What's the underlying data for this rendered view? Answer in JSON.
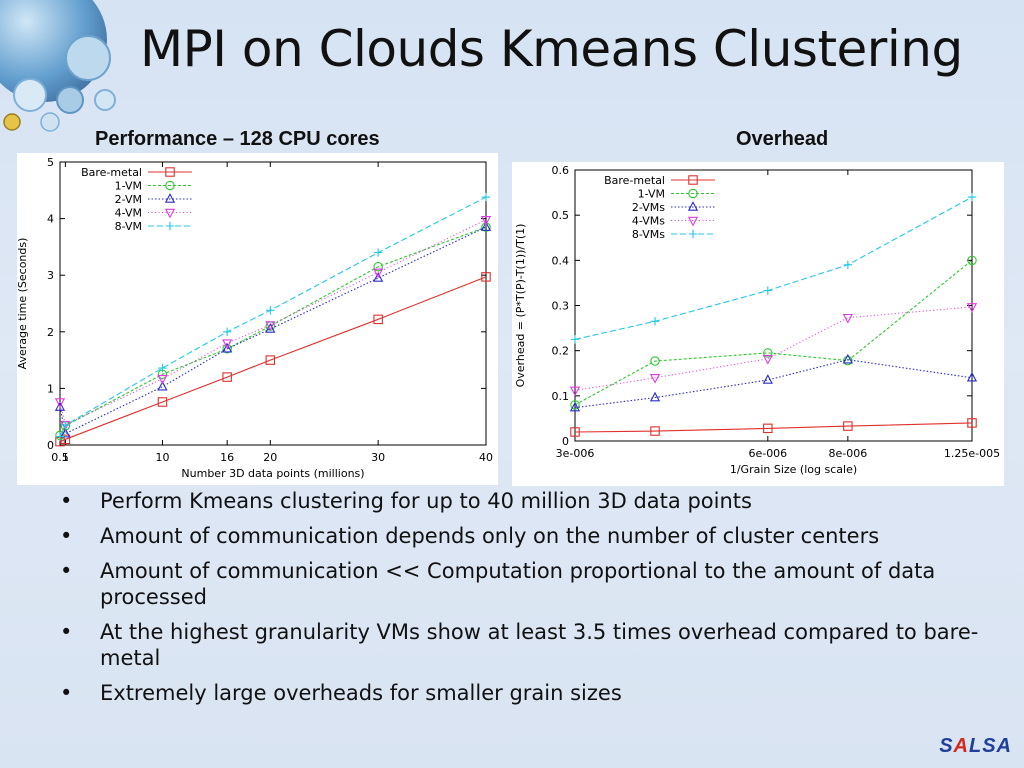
{
  "slide": {
    "title": "MPI on Clouds Kmeans Clustering",
    "bullets": [
      "Perform Kmeans clustering for up to 40 million 3D data points",
      "Amount of communication depends only on the number of cluster centers",
      "Amount of communication  << Computation proportional to the amount of data processed",
      "At the highest granularity VMs show at least 3.5 times overhead compared to bare-metal",
      "Extremely large overheads for smaller grain sizes"
    ],
    "logo": {
      "text": "SALSA",
      "colors": [
        "#1f3f9a",
        "#d22a1e",
        "#1f3f9a",
        "#1f3f9a",
        "#1f3f9a"
      ]
    }
  },
  "chart_data": [
    {
      "type": "line",
      "title": "Performance – 128 CPU cores",
      "xlabel": "Number 3D data points (millions)",
      "ylabel": "Average time (Seconds)",
      "x": [
        0.5,
        1,
        10,
        16,
        20,
        30,
        40
      ],
      "xticks": [
        0.5,
        1,
        10,
        16,
        20,
        30,
        40
      ],
      "xlim": [
        0.5,
        40
      ],
      "ylim": [
        0,
        5
      ],
      "yticks": [
        0,
        1,
        2,
        3,
        4,
        5
      ],
      "legend": "top-left",
      "grid": false,
      "series": [
        {
          "name": "Bare-metal",
          "color": "#e0302c",
          "marker": "square",
          "values": [
            0.06,
            0.1,
            0.76,
            1.2,
            1.5,
            2.22,
            2.97
          ]
        },
        {
          "name": "1-VM",
          "color": "#2ec72e",
          "marker": "circle",
          "values": [
            0.17,
            0.34,
            1.25,
            1.7,
            2.1,
            3.15,
            3.85
          ]
        },
        {
          "name": "2-VM",
          "color": "#2b2bcc",
          "marker": "triangle",
          "values": [
            0.67,
            0.2,
            1.03,
            1.7,
            2.05,
            2.95,
            3.85
          ]
        },
        {
          "name": "4-VM",
          "color": "#e23be2",
          "marker": "triangle-down",
          "values": [
            0.76,
            0.36,
            1.17,
            1.8,
            2.12,
            3.05,
            3.98
          ]
        },
        {
          "name": "8-VM",
          "color": "#22c8e8",
          "marker": "plus",
          "values": [
            0.15,
            0.35,
            1.36,
            2.0,
            2.38,
            3.4,
            4.38
          ]
        }
      ]
    },
    {
      "type": "line",
      "title": "Overhead",
      "xlabel": "1/Grain Size    (log scale)",
      "ylabel": "Overhead = (P*T(P)-T(1))/T(1)",
      "xscale": "log",
      "x": [
        3e-06,
        4e-06,
        6e-06,
        8e-06,
        1.25e-05
      ],
      "xticks": [
        3e-06,
        6e-06,
        8e-06,
        1.25e-05
      ],
      "xticklabels": [
        "3e-006",
        "6e-006",
        "8e-006",
        "1.25e-005"
      ],
      "xlim": [
        3e-06,
        1.25e-05
      ],
      "ylim": [
        0,
        0.6
      ],
      "yticks": [
        0,
        0.1,
        0.2,
        0.3,
        0.4,
        0.5,
        0.6
      ],
      "yticklabels": [
        "0",
        "0.1",
        "0.2",
        "0.3",
        "0.4",
        "0.5",
        "0.6"
      ],
      "legend": "top-left",
      "grid": false,
      "series": [
        {
          "name": "Bare-metal",
          "color": "#e0302c",
          "marker": "square",
          "values": [
            0.02,
            0.022,
            0.028,
            0.033,
            0.04
          ]
        },
        {
          "name": "1-VM",
          "color": "#2ec72e",
          "marker": "circle",
          "values": [
            0.08,
            0.177,
            0.195,
            0.178,
            0.4
          ]
        },
        {
          "name": "2-VMs",
          "color": "#2b2bcc",
          "marker": "triangle",
          "values": [
            0.074,
            0.096,
            0.135,
            0.18,
            0.14
          ]
        },
        {
          "name": "4-VMs",
          "color": "#e23be2",
          "marker": "triangle-down",
          "values": [
            0.112,
            0.14,
            0.182,
            0.273,
            0.297
          ]
        },
        {
          "name": "8-VMs",
          "color": "#22c8e8",
          "marker": "plus",
          "values": [
            0.225,
            0.265,
            0.333,
            0.39,
            0.54
          ]
        }
      ]
    }
  ]
}
